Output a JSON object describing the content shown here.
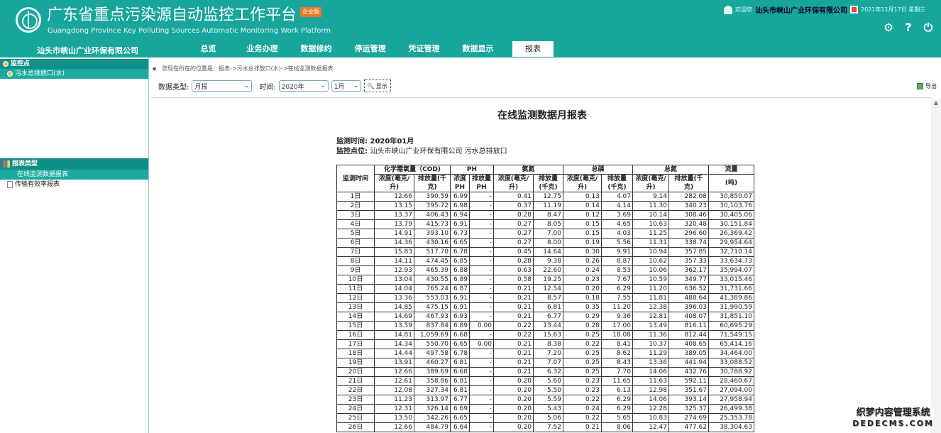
{
  "header": {
    "title": "广东省重点污染源自动监控工作平台",
    "subtitle": "Guangdong Province Key Polluting Sources Automatic Monitoring Work Platform",
    "badge": "企业版",
    "welcome": "欢迎您",
    "user": "汕头市峡山广业环保有限公司",
    "date": "2021年11月17日 星期三",
    "company": "汕头市峡山广业环保有限公司",
    "brand_color": "#17a59c"
  },
  "nav": [
    "总览",
    "业务办理",
    "数据修约",
    "停运管理",
    "凭证管理",
    "数据显示",
    "报表"
  ],
  "sidebar": {
    "monitor_head": "监控点",
    "monitor_items": [
      "污水总排放口(水)"
    ],
    "report_head": "报表类型",
    "report_items": [
      "在线监测数据报表",
      "传输有效率报表"
    ]
  },
  "breadcrumb": "您现在所在的位置是：报表->污水总排放口(水)->在线监测数据报表",
  "toolbar": {
    "type_label": "数据类型:",
    "type_value": "月报",
    "time_label": "时间:",
    "year_value": "2020年",
    "month_value": "1月",
    "show_label": "显示",
    "export_label": "导出"
  },
  "report": {
    "title": "在线监测数据月报表",
    "time_label": "监测时间:",
    "time_value": "2020年01月",
    "point_label": "监控点位:",
    "point_value": "汕头市峡山广业环保有限公司 污水总排放口",
    "group_headers": [
      "监测时间",
      "化学需氧量（COD)",
      "PH",
      "氨氮",
      "总磷",
      "总氮",
      "流量"
    ],
    "sub_headers": [
      "浓度(毫克/升)",
      "排放量(千克)",
      "浓度PH",
      "排放量PH",
      "浓度(毫克/升)",
      "排放量(千克)",
      "浓度(毫克/升)",
      "排放量(千克)",
      "浓度(毫克/升)",
      "排放量(千克)",
      "(吨)"
    ],
    "rows": [
      [
        "1日",
        "12.66",
        "390.59",
        "6.99",
        "-",
        "0.41",
        "12.75",
        "0.13",
        "4.07",
        "9.14",
        "282.08",
        "30,850.07"
      ],
      [
        "2日",
        "13.15",
        "395.72",
        "6.98",
        "-",
        "0.37",
        "11.19",
        "0.14",
        "4.14",
        "11.30",
        "340.23",
        "30,103.76"
      ],
      [
        "3日",
        "13.37",
        "406.43",
        "6.94",
        "-",
        "0.28",
        "8.47",
        "0.12",
        "3.69",
        "10.14",
        "308.46",
        "30,405.06"
      ],
      [
        "4日",
        "13.79",
        "415.73",
        "6.91",
        "-",
        "0.27",
        "8.05",
        "0.15",
        "4.65",
        "10.63",
        "320.48",
        "30,151.84"
      ],
      [
        "5日",
        "14.91",
        "393.10",
        "6.73",
        "-",
        "0.27",
        "7.00",
        "0.15",
        "4.03",
        "11.25",
        "296.60",
        "26,369.42"
      ],
      [
        "6日",
        "14.36",
        "430.16",
        "6.65",
        "-",
        "0.27",
        "8.00",
        "0.19",
        "5.56",
        "11.31",
        "338.74",
        "29,954.64"
      ],
      [
        "7日",
        "15.83",
        "517.70",
        "6.78",
        "-",
        "0.45",
        "14.64",
        "0.30",
        "9.91",
        "10.94",
        "357.85",
        "32,710.14"
      ],
      [
        "8日",
        "14.11",
        "474.45",
        "6.85",
        "-",
        "0.28",
        "9.38",
        "0.26",
        "8.87",
        "10.62",
        "357.33",
        "33,634.73"
      ],
      [
        "9日",
        "12.93",
        "465.39",
        "6.88",
        "-",
        "0.63",
        "22.60",
        "0.24",
        "8.53",
        "10.06",
        "362.17",
        "35,994.07"
      ],
      [
        "10日",
        "13.04",
        "430.55",
        "6.89",
        "-",
        "0.58",
        "19.25",
        "0.23",
        "7.67",
        "10.59",
        "349.77",
        "33,015.46"
      ],
      [
        "11日",
        "14.04",
        "765.24",
        "6.87",
        "-",
        "0.21",
        "12.54",
        "0.20",
        "6.29",
        "11.20",
        "636.52",
        "31,731.66"
      ],
      [
        "12日",
        "13.36",
        "553.03",
        "6.91",
        "-",
        "0.21",
        "8.57",
        "0.18",
        "7.55",
        "11.81",
        "488.64",
        "41,389.86"
      ],
      [
        "13日",
        "14.85",
        "475.15",
        "6.91",
        "-",
        "0.21",
        "6.81",
        "0.35",
        "11.20",
        "12.38",
        "396.03",
        "31,990.59"
      ],
      [
        "14日",
        "14.69",
        "467.93",
        "6.93",
        "-",
        "0.21",
        "6.77",
        "0.29",
        "9.36",
        "12.81",
        "408.07",
        "31,851.10"
      ],
      [
        "15日",
        "13.59",
        "837.84",
        "6.89",
        "0.00",
        "0.22",
        "13.44",
        "0.28",
        "17.00",
        "13.49",
        "816.11",
        "60,695.29"
      ],
      [
        "16日",
        "14.81",
        "1,059.69",
        "6.68",
        "-",
        "0.22",
        "15.63",
        "0.25",
        "18.08",
        "11.36",
        "812.44",
        "71,549.15"
      ],
      [
        "17日",
        "14.34",
        "550.70",
        "6.65",
        "0.00",
        "0.21",
        "8.38",
        "0.22",
        "8.41",
        "10.37",
        "408.65",
        "65,414.16"
      ],
      [
        "18日",
        "14.44",
        "497.58",
        "6.78",
        "-",
        "0.21",
        "7.20",
        "0.25",
        "8.62",
        "11.29",
        "389.05",
        "34,464.00"
      ],
      [
        "19日",
        "13.91",
        "460.27",
        "6.81",
        "-",
        "0.21",
        "7.07",
        "0.25",
        "8.43",
        "13.36",
        "441.94",
        "33,088.52"
      ],
      [
        "20日",
        "12.66",
        "389.69",
        "6.68",
        "-",
        "0.21",
        "6.32",
        "0.25",
        "7.70",
        "14.06",
        "432.76",
        "30,788.92"
      ],
      [
        "21日",
        "12.61",
        "358.86",
        "6.81",
        "-",
        "0.20",
        "5.60",
        "0.23",
        "11.65",
        "11.63",
        "592.11",
        "28,460.67"
      ],
      [
        "22日",
        "12.08",
        "327.34",
        "6.81",
        "-",
        "0.20",
        "5.50",
        "0.23",
        "6.13",
        "12.98",
        "351.67",
        "27,094.00"
      ],
      [
        "23日",
        "11.23",
        "313.97",
        "6.77",
        "-",
        "0.20",
        "5.59",
        "0.22",
        "6.29",
        "14.06",
        "393.14",
        "27,958.94"
      ],
      [
        "24日",
        "12.31",
        "326.14",
        "6.69",
        "-",
        "0.20",
        "5.43",
        "0.24",
        "6.29",
        "12.28",
        "325.37",
        "26,499.38"
      ],
      [
        "25日",
        "13.50",
        "342.26",
        "6.65",
        "-",
        "0.20",
        "5.06",
        "0.22",
        "5.65",
        "10.83",
        "274.69",
        "25,353.78"
      ],
      [
        "26日",
        "12.66",
        "484.79",
        "6.64",
        "-",
        "0.20",
        "7.52",
        "0.21",
        "8.06",
        "12.47",
        "477.62",
        "38,304.63"
      ]
    ]
  },
  "watermark": {
    "line1": "织梦内容管理系统",
    "line2": "DEDECMS.COM"
  }
}
